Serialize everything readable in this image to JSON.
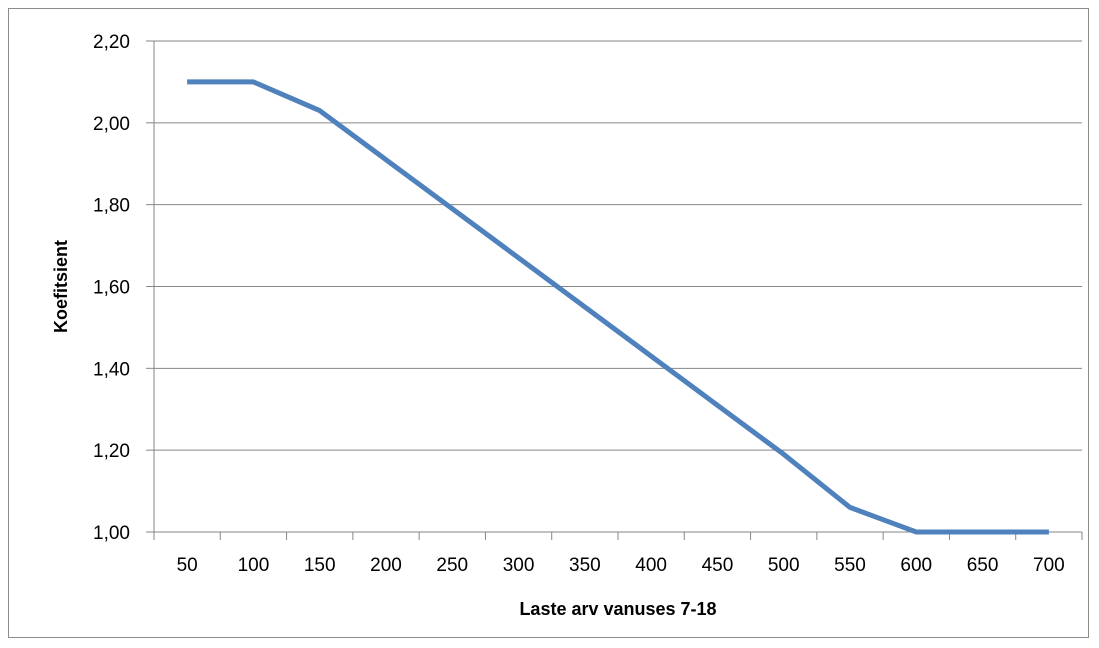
{
  "chart_data": {
    "type": "line",
    "title": "",
    "xlabel": "Laste arv vanuses 7-18",
    "ylabel": "Koefitsient",
    "categories": [
      "50",
      "100",
      "150",
      "200",
      "250",
      "300",
      "350",
      "400",
      "450",
      "500",
      "550",
      "600",
      "650",
      "700"
    ],
    "series": [
      {
        "color": "#4f81bd",
        "values": [
          2.1,
          2.1,
          2.03,
          1.91,
          1.79,
          1.67,
          1.55,
          1.43,
          1.31,
          1.19,
          1.06,
          1.0,
          1.0,
          1.0
        ]
      }
    ],
    "ylim": [
      1.0,
      2.2
    ],
    "yticks": [
      "1,00",
      "1,20",
      "1,40",
      "1,60",
      "1,80",
      "2,00",
      "2,20"
    ],
    "grid": true,
    "legend": "none"
  }
}
